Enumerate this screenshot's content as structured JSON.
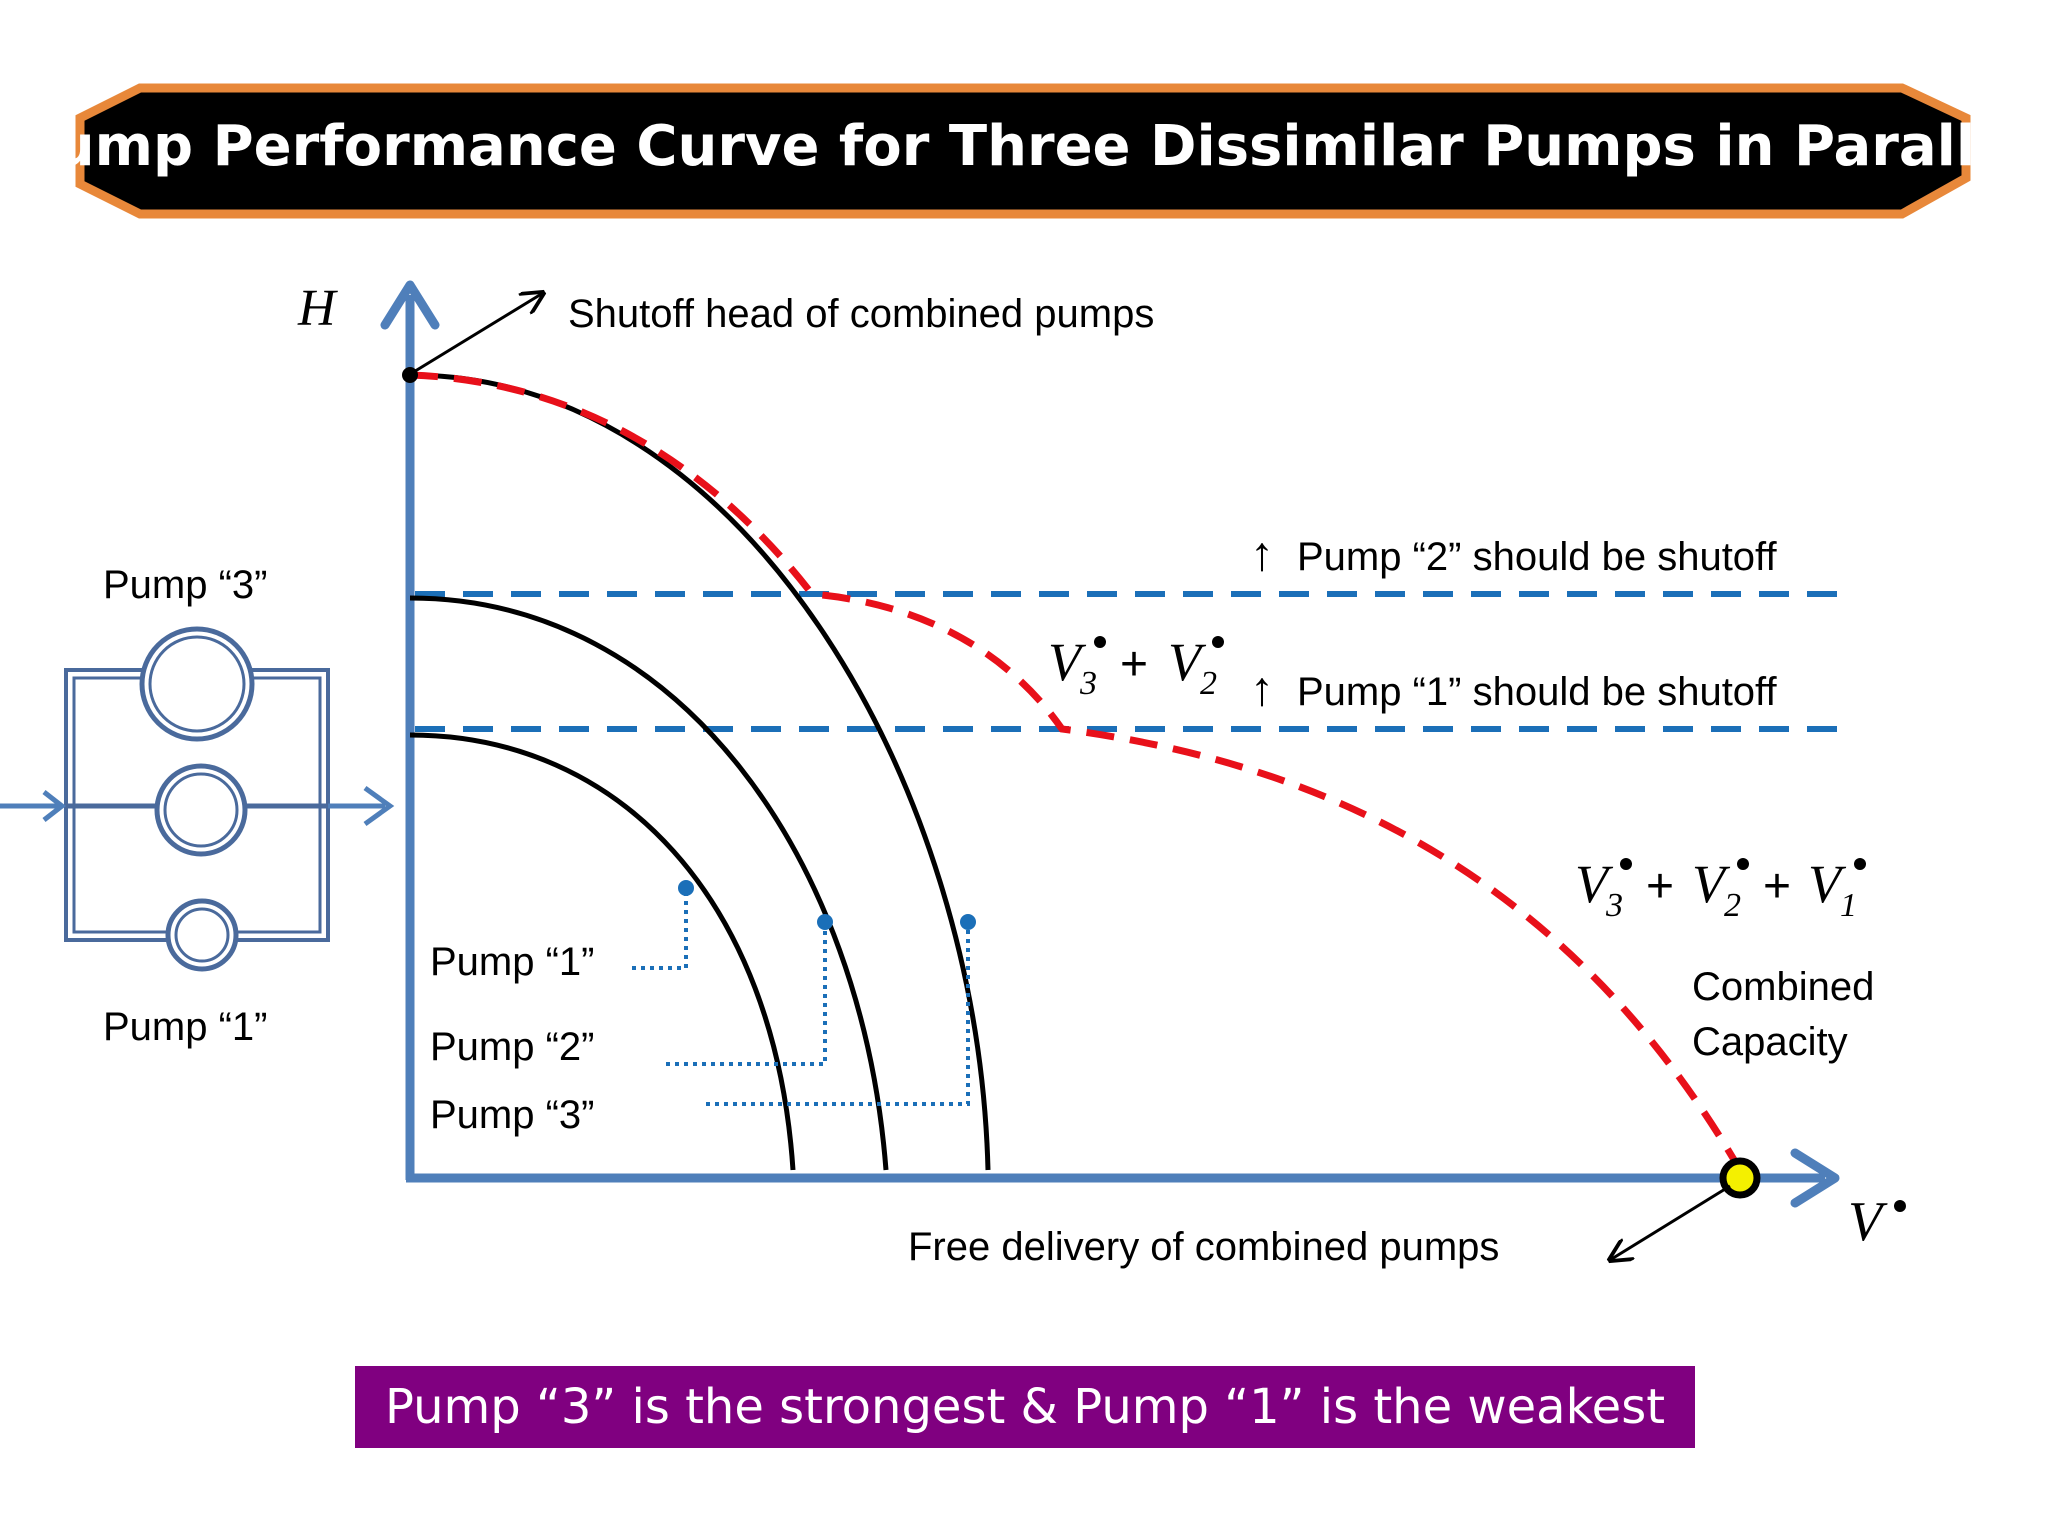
{
  "title": "Pump Performance Curve for Three Dissimilar Pumps in Parallel",
  "axes": {
    "y_label": "H",
    "x_label": "V"
  },
  "annotations": {
    "shutoff_head": "Shutoff head of combined pumps",
    "free_delivery": "Free delivery of combined pumps",
    "pump2_shutoff": "Pump “2” should be shutoff",
    "pump1_shutoff": "Pump “1” should be shutoff",
    "combined_capacity_line1": "Combined",
    "combined_capacity_line2": "Capacity",
    "arrow_up_glyph": "↑"
  },
  "sum_labels": {
    "v": "V",
    "plus": "+",
    "sub3": "3",
    "sub2": "2",
    "sub1": "1"
  },
  "curve_labels": {
    "pump1": "Pump “1”",
    "pump2": "Pump “2”",
    "pump3": "Pump “3”"
  },
  "schematic": {
    "top_label": "Pump “3”",
    "bottom_label": "Pump “1”"
  },
  "banner": "Pump “3” is the strongest & Pump “1” is the weakest",
  "colors": {
    "title_bg": "#000000",
    "title_border": "#e8883a",
    "axis": "#4f7fba",
    "curve": "#000000",
    "combined": "#e8101a",
    "shutoff_lines": "#1b6fb8",
    "leader": "#1b6fb8",
    "free_delivery_marker": "#f4f000",
    "banner_bg": "#800080"
  }
}
